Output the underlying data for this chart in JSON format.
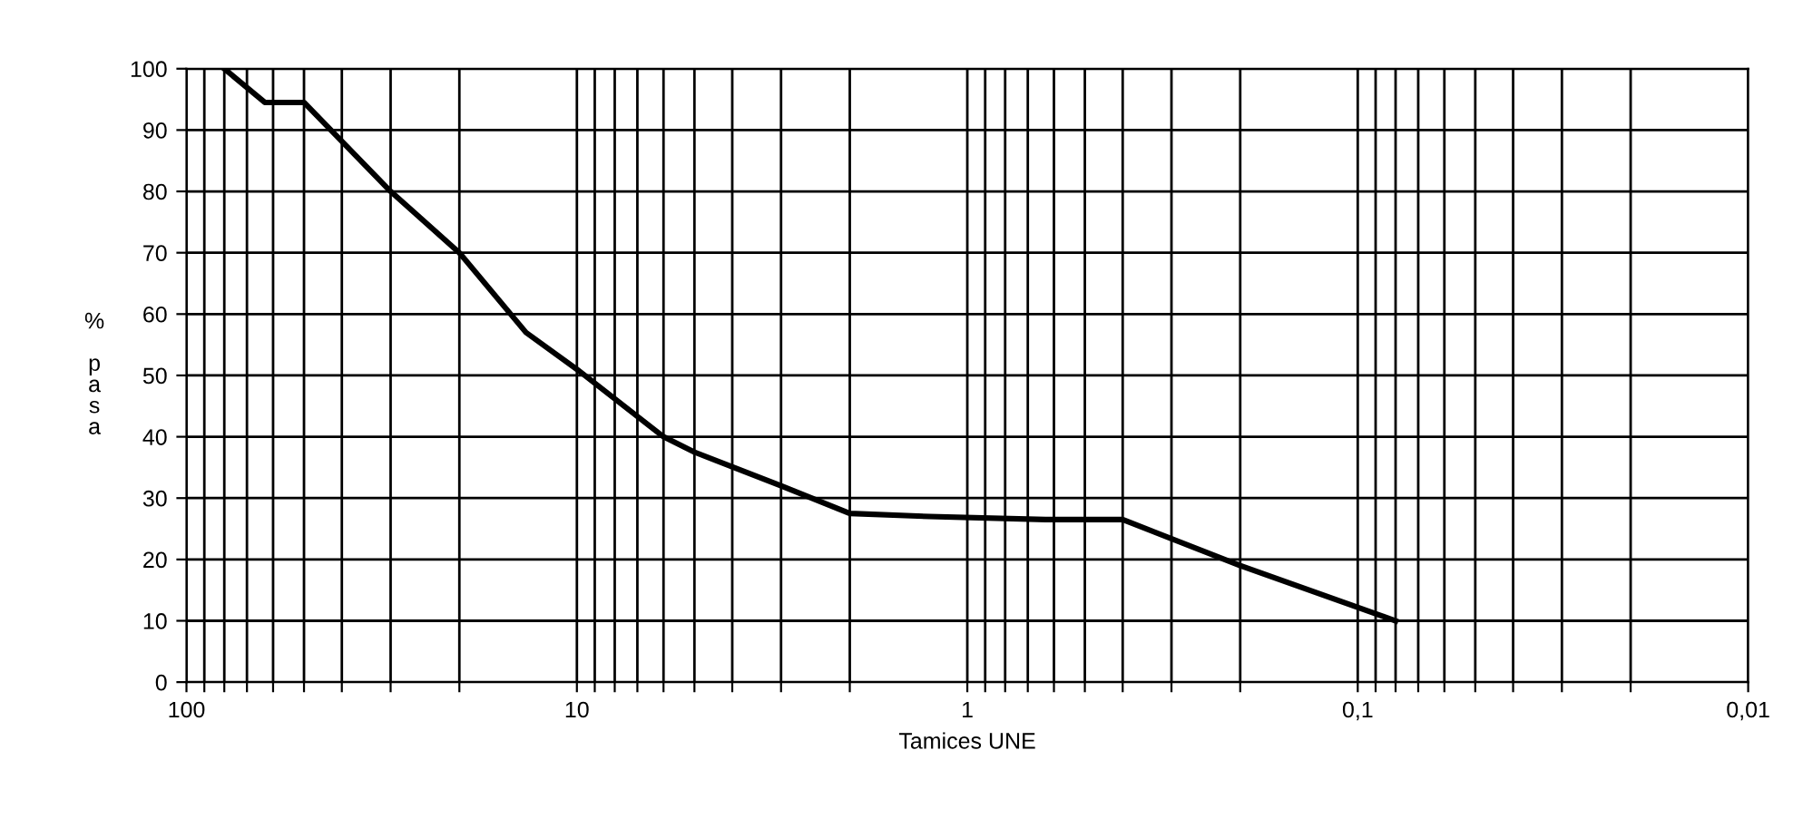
{
  "chart_data": {
    "type": "line",
    "xlabel": "Tamices UNE",
    "ylabel": "% pasa",
    "log": "x",
    "x": [
      80,
      63,
      50,
      30,
      20,
      13.5,
      10,
      6,
      5,
      3,
      2,
      1.25,
      0.63,
      0.4,
      0.2,
      0.08
    ],
    "series": [
      {
        "color": "#000000",
        "values": [
          100,
          94.5,
          94.5,
          80,
          70,
          57,
          51,
          40,
          37.5,
          32,
          27.5,
          27,
          26.5,
          26.5,
          19,
          10
        ]
      }
    ],
    "xlim": [
      100,
      0.01
    ],
    "xticks": [
      {
        "value": 100,
        "label": "100"
      },
      {
        "value": 90,
        "label": null
      },
      {
        "value": 80,
        "label": null
      },
      {
        "value": 70,
        "label": null
      },
      {
        "value": 60,
        "label": null
      },
      {
        "value": 50,
        "label": null
      },
      {
        "value": 40,
        "label": null
      },
      {
        "value": 30,
        "label": null
      },
      {
        "value": 20,
        "label": null
      },
      {
        "value": 10,
        "label": "10"
      },
      {
        "value": 9,
        "label": null
      },
      {
        "value": 8,
        "label": null
      },
      {
        "value": 7,
        "label": null
      },
      {
        "value": 6,
        "label": null
      },
      {
        "value": 5,
        "label": null
      },
      {
        "value": 4,
        "label": null
      },
      {
        "value": 3,
        "label": null
      },
      {
        "value": 2,
        "label": null
      },
      {
        "value": 1,
        "label": "1"
      },
      {
        "value": 0.9,
        "label": null
      },
      {
        "value": 0.8,
        "label": null
      },
      {
        "value": 0.7,
        "label": null
      },
      {
        "value": 0.6,
        "label": null
      },
      {
        "value": 0.5,
        "label": null
      },
      {
        "value": 0.4,
        "label": null
      },
      {
        "value": 0.3,
        "label": null
      },
      {
        "value": 0.2,
        "label": null
      },
      {
        "value": 0.1,
        "label": "0,1"
      },
      {
        "value": 0.09,
        "label": null
      },
      {
        "value": 0.08,
        "label": null
      },
      {
        "value": 0.07,
        "label": null
      },
      {
        "value": 0.06,
        "label": null
      },
      {
        "value": 0.05,
        "label": null
      },
      {
        "value": 0.04,
        "label": null
      },
      {
        "value": 0.03,
        "label": null
      },
      {
        "value": 0.02,
        "label": null
      },
      {
        "value": 0.01,
        "label": "0,01"
      }
    ],
    "ylim": [
      0,
      100
    ],
    "yticks": [
      0,
      10,
      20,
      30,
      40,
      50,
      60,
      70,
      80,
      90,
      100
    ],
    "grid": true,
    "legend": false,
    "marker": "none",
    "line_style": "solid"
  }
}
